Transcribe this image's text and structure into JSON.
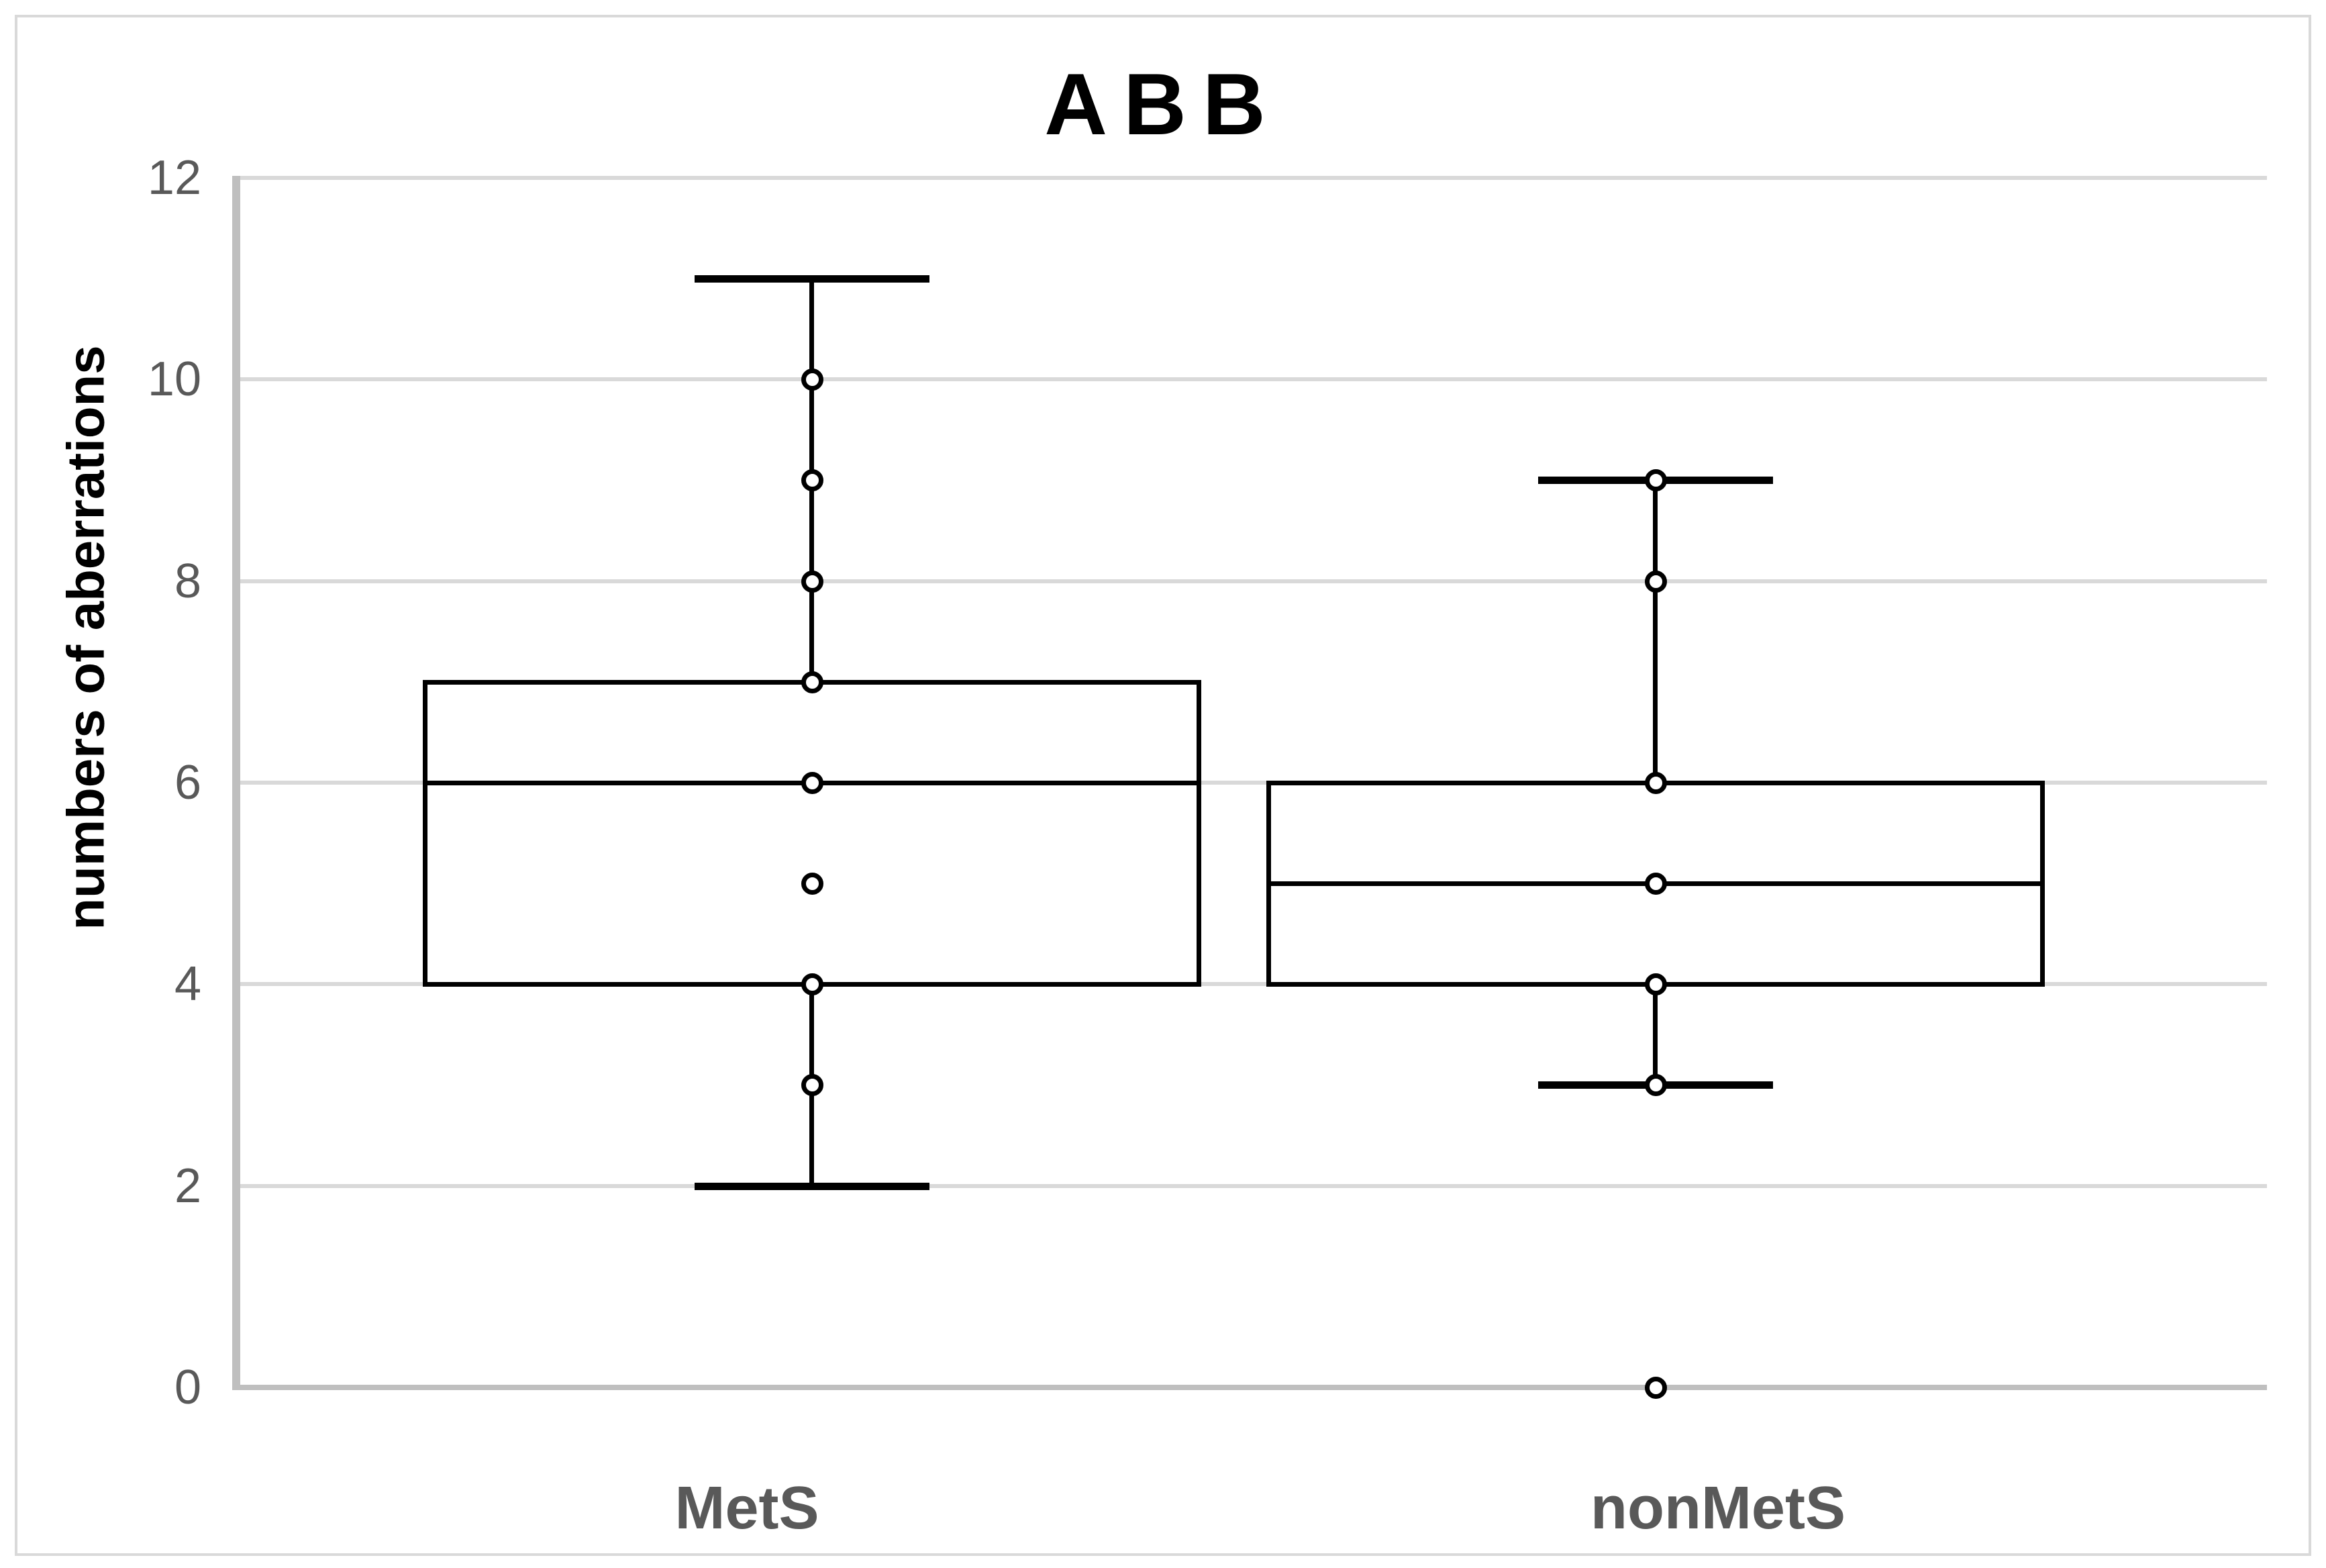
{
  "chart_data": {
    "type": "boxplot",
    "title": "ABB",
    "xlabel": "",
    "ylabel": "numbers of aberrations",
    "ylim": [
      0,
      12
    ],
    "yticks": [
      0,
      2,
      4,
      6,
      8,
      10,
      12
    ],
    "grid": true,
    "legend": "none",
    "categories": [
      "MetS",
      "nonMetS"
    ],
    "series": [
      {
        "name": "MetS",
        "whisker_low": 2,
        "q1": 4,
        "median": 6,
        "q3": 7,
        "whisker_high": 11,
        "points": [
          3,
          4,
          5,
          6,
          7,
          8,
          9,
          10
        ]
      },
      {
        "name": "nonMetS",
        "whisker_low": 3,
        "q1": 4,
        "median": 5,
        "q3": 6,
        "whisker_high": 9,
        "points": [
          0,
          3,
          4,
          5,
          6,
          8,
          9
        ]
      }
    ],
    "colors": {
      "box_stroke": "#000000",
      "marker_fill": "#ffffff",
      "gridline": "#d9d9d9",
      "axis_line": "#bfbfbf",
      "tick_text": "#595959",
      "category_text": "#595959",
      "title_text": "#000000",
      "figure_border": "#d9d9d9"
    }
  }
}
